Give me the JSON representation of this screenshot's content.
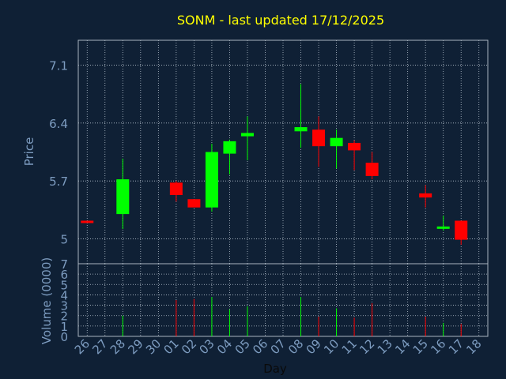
{
  "chart_data": [
    {
      "type": "candlestick",
      "title": "SONM - last updated 17/12/2025",
      "ylabel": "Price",
      "ylim": [
        4.7,
        7.4
      ],
      "yticks": [
        "7.1",
        "6.4",
        "5.7",
        "5"
      ],
      "ytick_values": [
        7.1,
        6.4,
        5.7,
        5.0
      ],
      "grid": true,
      "categories": [
        "26",
        "27",
        "28",
        "29",
        "30",
        "01",
        "02",
        "03",
        "04",
        "05",
        "06",
        "07",
        "08",
        "09",
        "10",
        "11",
        "12",
        "13",
        "14",
        "15",
        "16",
        "17",
        "18"
      ],
      "candles": [
        {
          "day": "26",
          "open": 5.22,
          "close": 5.2,
          "high": 5.22,
          "low": 5.2
        },
        {
          "day": "28",
          "open": 5.3,
          "close": 5.72,
          "high": 5.97,
          "low": 5.12
        },
        {
          "day": "01",
          "open": 5.68,
          "close": 5.53,
          "high": 5.7,
          "low": 5.45
        },
        {
          "day": "02",
          "open": 5.48,
          "close": 5.38,
          "high": 5.48,
          "low": 5.38
        },
        {
          "day": "03",
          "open": 5.38,
          "close": 6.05,
          "high": 6.15,
          "low": 5.33
        },
        {
          "day": "04",
          "open": 6.03,
          "close": 6.18,
          "high": 6.2,
          "low": 5.78
        },
        {
          "day": "05",
          "open": 6.24,
          "close": 6.28,
          "high": 6.48,
          "low": 5.95
        },
        {
          "day": "08",
          "open": 6.3,
          "close": 6.35,
          "high": 6.87,
          "low": 6.1
        },
        {
          "day": "09",
          "open": 6.32,
          "close": 6.12,
          "high": 6.48,
          "low": 5.87
        },
        {
          "day": "10",
          "open": 6.12,
          "close": 6.22,
          "high": 6.32,
          "low": 5.85
        },
        {
          "day": "11",
          "open": 6.16,
          "close": 6.07,
          "high": 6.19,
          "low": 5.83
        },
        {
          "day": "12",
          "open": 5.92,
          "close": 5.76,
          "high": 6.05,
          "low": 5.72
        },
        {
          "day": "15",
          "open": 5.55,
          "close": 5.5,
          "high": 5.65,
          "low": 5.38
        },
        {
          "day": "16",
          "open": 5.15,
          "close": 5.15,
          "high": 5.28,
          "low": 5.1
        },
        {
          "day": "17",
          "open": 5.22,
          "close": 4.99,
          "high": 5.22,
          "low": 4.93
        }
      ]
    },
    {
      "type": "bar",
      "ylabel": "Volume (0000)",
      "xlabel": "Day",
      "ylim": [
        0,
        7
      ],
      "yticks": [
        "0",
        "1",
        "2",
        "3",
        "4",
        "5",
        "6",
        "7"
      ],
      "ytick_values": [
        0,
        1,
        2,
        3,
        4,
        5,
        6,
        7
      ],
      "categories": [
        "26",
        "27",
        "28",
        "29",
        "30",
        "01",
        "02",
        "03",
        "04",
        "05",
        "06",
        "07",
        "08",
        "09",
        "10",
        "11",
        "12",
        "13",
        "14",
        "15",
        "16",
        "17",
        "18"
      ],
      "series": [
        {
          "values": [
            {
              "day": "28",
              "volume": 2.0,
              "direction": "up"
            },
            {
              "day": "01",
              "volume": 3.5,
              "direction": "down"
            },
            {
              "day": "02",
              "volume": 3.6,
              "direction": "down"
            },
            {
              "day": "03",
              "volume": 3.8,
              "direction": "up"
            },
            {
              "day": "04",
              "volume": 2.6,
              "direction": "up"
            },
            {
              "day": "05",
              "volume": 2.9,
              "direction": "up"
            },
            {
              "day": "08",
              "volume": 3.8,
              "direction": "up"
            },
            {
              "day": "09",
              "volume": 1.9,
              "direction": "down"
            },
            {
              "day": "10",
              "volume": 2.7,
              "direction": "up"
            },
            {
              "day": "11",
              "volume": 1.8,
              "direction": "down"
            },
            {
              "day": "12",
              "volume": 3.2,
              "direction": "down"
            },
            {
              "day": "15",
              "volume": 1.9,
              "direction": "down"
            },
            {
              "day": "16",
              "volume": 1.3,
              "direction": "up"
            },
            {
              "day": "17",
              "volume": 1.2,
              "direction": "down"
            }
          ]
        }
      ]
    }
  ],
  "colors": {
    "background": "#0f2035",
    "title": "#ffff00",
    "axis_text": "#7d9cc0",
    "grid": "#b8c4d0",
    "frame": "#a8b4c0",
    "up": "#00ff00",
    "down": "#ff0000"
  }
}
